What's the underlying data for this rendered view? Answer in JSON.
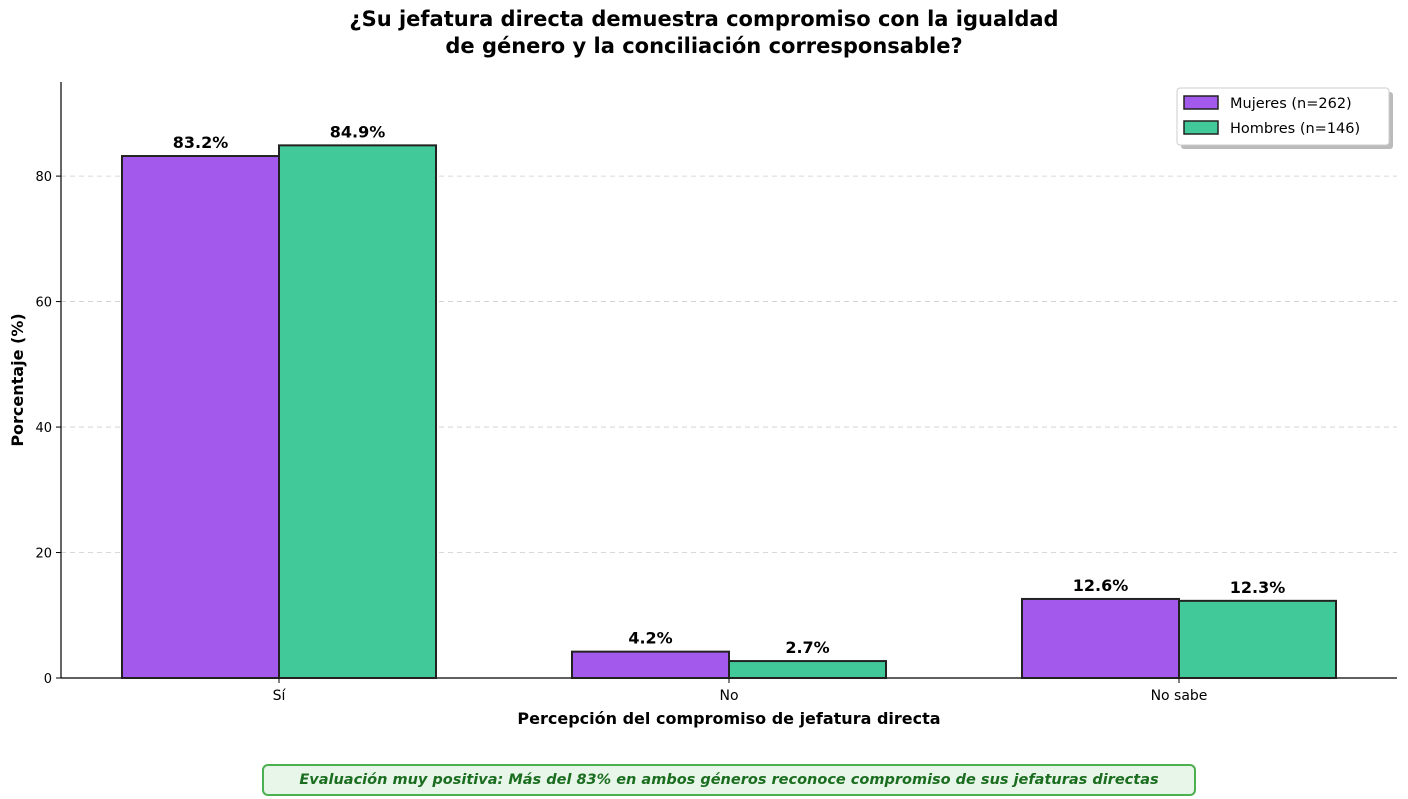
{
  "chart_data": {
    "type": "bar",
    "title": [
      "¿Su jefatura directa demuestra compromiso con la igualdad",
      "de género y la conciliación corresponsable?"
    ],
    "xlabel": "Percepción del compromiso de jefatura directa",
    "ylabel": "Porcentaje (%)",
    "categories": [
      "Sí",
      "No",
      "No sabe"
    ],
    "series": [
      {
        "name": "Mujeres (n=262)",
        "color": "#a259ec",
        "values": [
          83.2,
          4.2,
          12.6
        ],
        "labels": [
          "83.2%",
          "4.2%",
          "12.6%"
        ]
      },
      {
        "name": "Hombres (n=146)",
        "color": "#41c99a",
        "values": [
          84.9,
          2.7,
          12.3
        ],
        "labels": [
          "84.9%",
          "2.7%",
          "12.3%"
        ]
      }
    ],
    "ylim": [
      0,
      95
    ],
    "yticks": [
      0,
      20,
      40,
      60,
      80
    ],
    "grid": true,
    "legend_position": "top-right",
    "annotation": "Evaluación muy positiva: Más del 83% en ambos géneros reconoce compromiso de sus jefaturas directas"
  }
}
